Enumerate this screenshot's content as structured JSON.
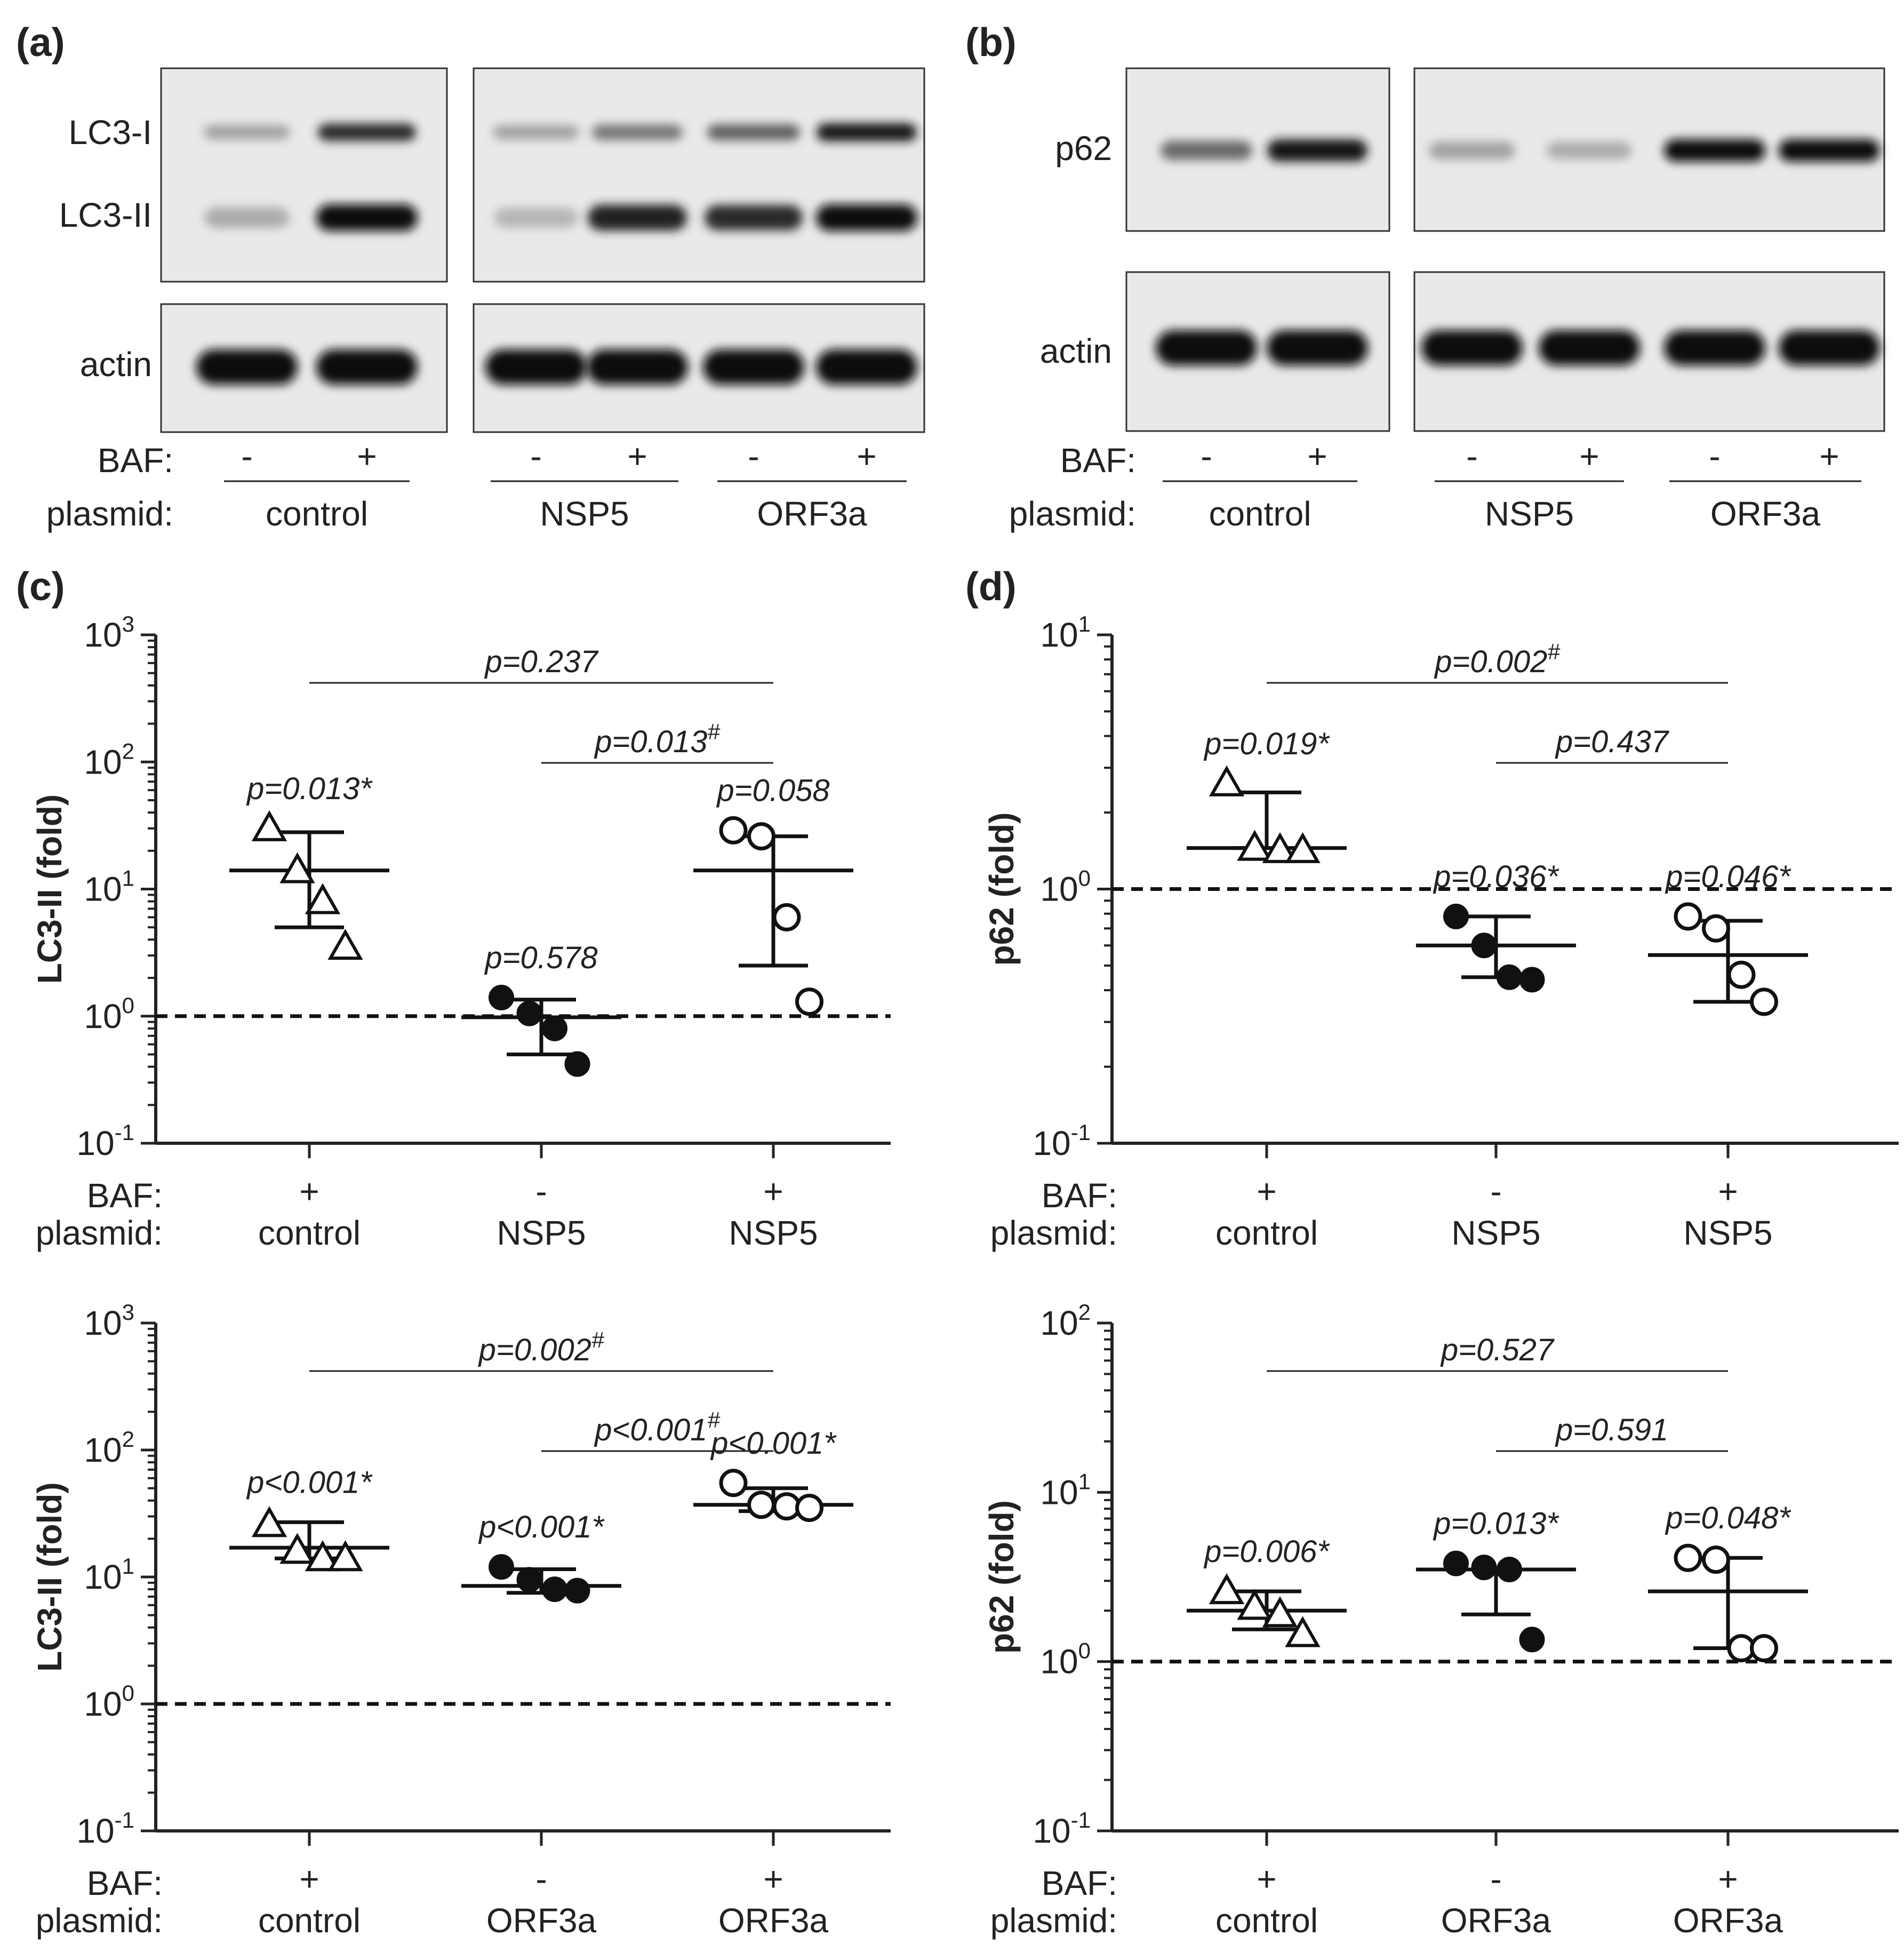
{
  "panel_labels": [
    "(a)",
    "(b)",
    "(c)",
    "(d)"
  ],
  "blots": [
    {
      "panel": "(a)",
      "band_labels": [
        "LC3-I",
        "LC3-II",
        "actin"
      ],
      "baf_label": "BAF:",
      "plasmid_label": "plasmid:",
      "lanes": [
        {
          "baf": "-",
          "group": "control"
        },
        {
          "baf": "+",
          "group": "control"
        },
        {
          "baf": "-",
          "group": "NSP5"
        },
        {
          "baf": "+",
          "group": "NSP5"
        },
        {
          "baf": "-",
          "group": "ORF3a"
        },
        {
          "baf": "+",
          "group": "ORF3a"
        }
      ],
      "groups": [
        "control",
        "NSP5",
        "ORF3a"
      ],
      "band_intensity": {
        "LC3-I": [
          0.3,
          0.85,
          0.3,
          0.5,
          0.6,
          0.95
        ],
        "LC3-II": [
          0.25,
          1.0,
          0.2,
          0.9,
          0.85,
          1.0
        ],
        "actin": [
          1.0,
          1.0,
          1.0,
          1.0,
          1.0,
          1.0
        ]
      }
    },
    {
      "panel": "(b)",
      "band_labels": [
        "p62",
        "actin"
      ],
      "baf_label": "BAF:",
      "plasmid_label": "plasmid:",
      "lanes": [
        {
          "baf": "-",
          "group": "control"
        },
        {
          "baf": "+",
          "group": "control"
        },
        {
          "baf": "-",
          "group": "NSP5"
        },
        {
          "baf": "+",
          "group": "NSP5"
        },
        {
          "baf": "-",
          "group": "ORF3a"
        },
        {
          "baf": "+",
          "group": "ORF3a"
        }
      ],
      "groups": [
        "control",
        "NSP5",
        "ORF3a"
      ],
      "band_intensity": {
        "p62": [
          0.55,
          0.95,
          0.3,
          0.25,
          1.0,
          1.0
        ],
        "actin": [
          1.0,
          1.0,
          1.0,
          1.0,
          1.0,
          1.0
        ]
      }
    }
  ],
  "chart_data": [
    {
      "panel": "(c)",
      "type": "scatter",
      "ylabel": "LC3-II (fold)",
      "yscale": "log",
      "ylim": [
        0.1,
        1000
      ],
      "yticks": [
        {
          "base": "10",
          "exp": "-1"
        },
        {
          "base": "10",
          "exp": "0"
        },
        {
          "base": "10",
          "exp": "1"
        },
        {
          "base": "10",
          "exp": "2"
        },
        {
          "base": "10",
          "exp": "3"
        }
      ],
      "reference_line": 1,
      "row_labels": {
        "baf": "BAF:",
        "plasmid": "plasmid:"
      },
      "categories": [
        {
          "baf": "+",
          "plasmid": "control"
        },
        {
          "baf": "-",
          "plasmid": "NSP5"
        },
        {
          "baf": "+",
          "plasmid": "NSP5"
        }
      ],
      "series": [
        {
          "marker": "open-triangle",
          "points": [
            30,
            14,
            8,
            3.5
          ],
          "mean": 14,
          "err_low": 5,
          "err_high": 28,
          "pvalue": "p=0.013*"
        },
        {
          "marker": "filled-circle",
          "points": [
            1.4,
            1.05,
            0.8,
            0.42
          ],
          "mean": 0.98,
          "err_low": 0.5,
          "err_high": 1.35,
          "pvalue": "p=0.578"
        },
        {
          "marker": "open-circle",
          "points": [
            29,
            26,
            6,
            1.3
          ],
          "mean": 14,
          "err_low": 2.5,
          "err_high": 26,
          "pvalue": "p=0.058"
        }
      ],
      "comparisons": [
        {
          "from": 0,
          "to": 2,
          "label": "p=0.237",
          "sup": ""
        },
        {
          "from": 1,
          "to": 2,
          "label": "p=0.013",
          "sup": "#"
        }
      ]
    },
    {
      "panel": "(d)",
      "type": "scatter",
      "ylabel": "p62 (fold)",
      "yscale": "log",
      "ylim": [
        0.1,
        10
      ],
      "yticks": [
        {
          "base": "10",
          "exp": "-1"
        },
        {
          "base": "10",
          "exp": "0"
        },
        {
          "base": "10",
          "exp": "1"
        }
      ],
      "reference_line": 1,
      "row_labels": {
        "baf": "BAF:",
        "plasmid": "plasmid:"
      },
      "categories": [
        {
          "baf": "+",
          "plasmid": "control"
        },
        {
          "baf": "-",
          "plasmid": "NSP5"
        },
        {
          "baf": "+",
          "plasmid": "NSP5"
        }
      ],
      "series": [
        {
          "marker": "open-triangle",
          "points": [
            2.6,
            1.45,
            1.42,
            1.42
          ],
          "mean": 1.45,
          "err_low": 1.45,
          "err_high": 2.4,
          "pvalue": "p=0.019*"
        },
        {
          "marker": "filled-circle",
          "points": [
            0.78,
            0.6,
            0.45,
            0.44
          ],
          "mean": 0.6,
          "err_low": 0.45,
          "err_high": 0.78,
          "pvalue": "p=0.036*"
        },
        {
          "marker": "open-circle",
          "points": [
            0.78,
            0.7,
            0.46,
            0.36
          ],
          "mean": 0.55,
          "err_low": 0.36,
          "err_high": 0.75,
          "pvalue": "p=0.046*"
        }
      ],
      "comparisons": [
        {
          "from": 0,
          "to": 2,
          "label": "p=0.002",
          "sup": "#"
        },
        {
          "from": 1,
          "to": 2,
          "label": "p=0.437",
          "sup": ""
        }
      ]
    },
    {
      "panel": "(c) lower",
      "type": "scatter",
      "ylabel": "LC3-II (fold)",
      "yscale": "log",
      "ylim": [
        0.1,
        1000
      ],
      "yticks": [
        {
          "base": "10",
          "exp": "-1"
        },
        {
          "base": "10",
          "exp": "0"
        },
        {
          "base": "10",
          "exp": "1"
        },
        {
          "base": "10",
          "exp": "2"
        },
        {
          "base": "10",
          "exp": "3"
        }
      ],
      "reference_line": 1,
      "row_labels": {
        "baf": "BAF:",
        "plasmid": "plasmid:"
      },
      "categories": [
        {
          "baf": "+",
          "plasmid": "control"
        },
        {
          "baf": "-",
          "plasmid": "ORF3a"
        },
        {
          "baf": "+",
          "plasmid": "ORF3a"
        }
      ],
      "series": [
        {
          "marker": "open-triangle",
          "points": [
            26,
            16,
            14,
            14
          ],
          "mean": 17,
          "err_low": 14,
          "err_high": 27,
          "pvalue": "p<0.001*"
        },
        {
          "marker": "filled-circle",
          "points": [
            12,
            9.5,
            8,
            7.8
          ],
          "mean": 8.5,
          "err_low": 7.5,
          "err_high": 11.5,
          "pvalue": "p<0.001*"
        },
        {
          "marker": "open-circle",
          "points": [
            55,
            37,
            36,
            35
          ],
          "mean": 37,
          "err_low": 33,
          "err_high": 50,
          "pvalue": "p<0.001*"
        }
      ],
      "comparisons": [
        {
          "from": 0,
          "to": 2,
          "label": "p=0.002",
          "sup": "#"
        },
        {
          "from": 1,
          "to": 2,
          "label": "p<0.001",
          "sup": "#"
        }
      ]
    },
    {
      "panel": "(d) lower",
      "type": "scatter",
      "ylabel": "p62 (fold)",
      "yscale": "log",
      "ylim": [
        0.1,
        100
      ],
      "yticks": [
        {
          "base": "10",
          "exp": "-1"
        },
        {
          "base": "10",
          "exp": "0"
        },
        {
          "base": "10",
          "exp": "1"
        },
        {
          "base": "10",
          "exp": "2"
        }
      ],
      "reference_line": 1,
      "row_labels": {
        "baf": "BAF:",
        "plasmid": "plasmid:"
      },
      "categories": [
        {
          "baf": "+",
          "plasmid": "control"
        },
        {
          "baf": "-",
          "plasmid": "ORF3a"
        },
        {
          "baf": "+",
          "plasmid": "ORF3a"
        }
      ],
      "series": [
        {
          "marker": "open-triangle",
          "points": [
            2.6,
            2.1,
            1.9,
            1.45
          ],
          "mean": 2.0,
          "err_low": 1.55,
          "err_high": 2.6,
          "pvalue": "p=0.006*"
        },
        {
          "marker": "filled-circle",
          "points": [
            3.8,
            3.6,
            3.5,
            1.35
          ],
          "mean": 3.5,
          "err_low": 1.9,
          "err_high": 3.5,
          "pvalue": "p=0.013*"
        },
        {
          "marker": "open-circle",
          "points": [
            4.1,
            4.0,
            1.2,
            1.2
          ],
          "mean": 2.6,
          "err_low": 1.2,
          "err_high": 4.1,
          "pvalue": "p=0.048*"
        }
      ],
      "comparisons": [
        {
          "from": 0,
          "to": 2,
          "label": "p=0.527",
          "sup": ""
        },
        {
          "from": 1,
          "to": 2,
          "label": "p=0.591",
          "sup": ""
        }
      ]
    }
  ]
}
